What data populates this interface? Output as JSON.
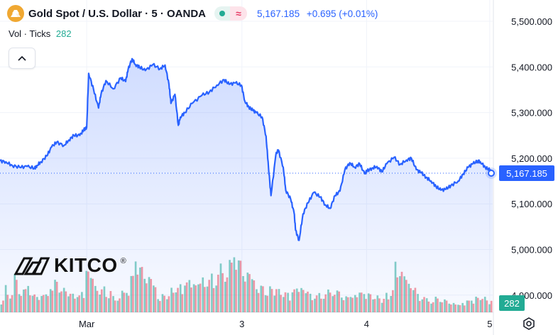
{
  "header": {
    "title": "Gold Spot / U.S. Dollar · 5 · OANDA",
    "price": "5,167.185",
    "change": "+0.695 (+0.01%)"
  },
  "volume": {
    "label": "Vol · Ticks",
    "value": "282"
  },
  "logo": {
    "text": "KITCO",
    "mark": "®"
  },
  "icons": {
    "symbol": "gold-bars-icon",
    "status": "market-open-dot-icon",
    "compare": "wave-icon",
    "collapse": "chevron-up-icon",
    "settings": "settings-hexagon-icon"
  },
  "colors": {
    "line": "#2962ff",
    "up_volume": "#22ab94",
    "down_volume": "#f23645",
    "price_label": "#2962ff",
    "volume_label": "#22ab94"
  },
  "chart_data": {
    "type": "area",
    "title": "Gold Spot / U.S. Dollar · 5 · OANDA",
    "ylim": [
      4935,
      5550
    ],
    "y_ticks": [
      "5,500.000",
      "5,400.000",
      "5,300.000",
      "5,200.000",
      "5,100.000",
      "5,000.000",
      "4,900.000"
    ],
    "y_tick_values": [
      5500,
      5400,
      5300,
      5200,
      5100,
      5000,
      4900
    ],
    "x_ticks": [
      {
        "label": "Mar",
        "x": 0.176
      },
      {
        "label": "3",
        "x": 0.491
      },
      {
        "label": "4",
        "x": 0.744
      },
      {
        "label": "5",
        "x": 0.994
      }
    ],
    "last_price": 5167.185,
    "last_price_label": "5,167.185",
    "last_volume_label": "282",
    "series": [
      {
        "x": [
          0,
          0.012,
          0.025,
          0.04,
          0.055,
          0.07,
          0.075,
          0.083,
          0.095,
          0.105,
          0.115,
          0.13,
          0.14,
          0.15,
          0.162,
          0.17,
          0.176,
          0.18,
          0.19,
          0.2,
          0.205,
          0.215,
          0.23,
          0.245,
          0.255,
          0.26,
          0.268,
          0.275,
          0.283,
          0.295,
          0.31,
          0.325,
          0.335,
          0.343,
          0.347,
          0.355,
          0.362,
          0.366,
          0.375,
          0.39,
          0.41,
          0.425,
          0.44,
          0.455,
          0.465,
          0.478,
          0.49,
          0.497,
          0.505,
          0.513,
          0.52,
          0.532,
          0.54,
          0.545,
          0.55,
          0.56,
          0.565,
          0.575,
          0.58,
          0.59,
          0.597,
          0.6,
          0.607,
          0.615,
          0.625,
          0.637,
          0.65,
          0.66,
          0.67,
          0.68,
          0.69,
          0.7,
          0.71,
          0.72,
          0.73,
          0.74,
          0.745,
          0.755,
          0.765,
          0.775,
          0.785,
          0.8,
          0.812,
          0.825,
          0.835,
          0.845,
          0.855,
          0.865,
          0.875,
          0.885,
          0.895,
          0.905,
          0.915,
          0.93,
          0.94,
          0.95,
          0.96,
          0.97,
          0.975,
          0.985,
          0.994,
          1.0
        ],
        "y": [
          5194,
          5192,
          5184,
          5180,
          5182,
          5178,
          5184,
          5192,
          5205,
          5225,
          5235,
          5228,
          5240,
          5250,
          5250,
          5262,
          5268,
          5386,
          5350,
          5310,
          5340,
          5370,
          5352,
          5376,
          5368,
          5394,
          5418,
          5405,
          5400,
          5392,
          5405,
          5396,
          5404,
          5362,
          5320,
          5340,
          5272,
          5290,
          5300,
          5320,
          5338,
          5345,
          5360,
          5372,
          5362,
          5365,
          5360,
          5325,
          5312,
          5305,
          5300,
          5290,
          5248,
          5180,
          5118,
          5208,
          5218,
          5180,
          5130,
          5110,
          5080,
          5042,
          5020,
          5078,
          5102,
          5125,
          5115,
          5098,
          5090,
          5118,
          5128,
          5175,
          5190,
          5180,
          5188,
          5166,
          5172,
          5178,
          5182,
          5170,
          5188,
          5202,
          5186,
          5196,
          5200,
          5175,
          5168,
          5158,
          5150,
          5138,
          5130,
          5132,
          5140,
          5150,
          5165,
          5180,
          5188,
          5194,
          5192,
          5180,
          5174,
          5167
        ]
      }
    ],
    "volume": {
      "max_display": 1200,
      "ticks_note": "Vol · Ticks",
      "up": [
        200,
        420,
        300,
        610,
        350,
        380,
        460,
        300,
        250,
        330,
        280,
        540,
        500,
        470,
        380,
        330,
        300,
        280,
        350,
        700,
        650,
        420,
        380,
        400,
        350,
        250,
        260,
        340,
        380,
        600,
        900,
        800,
        550,
        700,
        420,
        300,
        280,
        320,
        380,
        420,
        450,
        500,
        550,
        480,
        520,
        560,
        540,
        600,
        650,
        750,
        700,
        820,
        1100,
        850,
        650,
        700,
        550,
        450,
        420,
        380,
        400,
        420,
        360,
        330,
        310,
        380,
        400,
        420,
        350,
        300,
        280,
        300,
        320,
        350,
        380,
        340,
        300,
        260,
        280,
        300,
        330,
        350,
        300,
        280,
        260,
        240,
        300,
        360,
        800,
        700,
        600,
        500,
        400,
        300,
        260,
        220,
        200,
        240,
        250,
        200,
        180,
        150,
        140,
        160,
        200,
        220,
        250,
        260,
        240,
        200
      ],
      "down": [
        180,
        380,
        280,
        560,
        320,
        360,
        420,
        280,
        230,
        310,
        260,
        500,
        470,
        430,
        350,
        310,
        280,
        260,
        330,
        650,
        600,
        400,
        360,
        380,
        330,
        230,
        240,
        320,
        360,
        560,
        820,
        740,
        500,
        650,
        390,
        280,
        260,
        300,
        350,
        390,
        420,
        460,
        510,
        450,
        480,
        520,
        500,
        560,
        600,
        700,
        650,
        780,
        1050,
        800,
        600,
        660,
        520,
        420,
        400,
        360,
        380,
        400,
        340,
        310,
        290,
        360,
        380,
        400,
        330,
        280,
        260,
        280,
        300,
        330,
        360,
        320,
        280,
        240,
        260,
        280,
        310,
        330,
        280,
        260,
        240,
        220,
        280,
        340,
        760,
        660,
        560,
        470,
        380,
        280,
        240,
        200,
        180,
        220,
        230,
        180,
        160,
        130,
        120,
        140,
        180,
        200,
        230,
        240,
        220,
        180
      ]
    }
  }
}
